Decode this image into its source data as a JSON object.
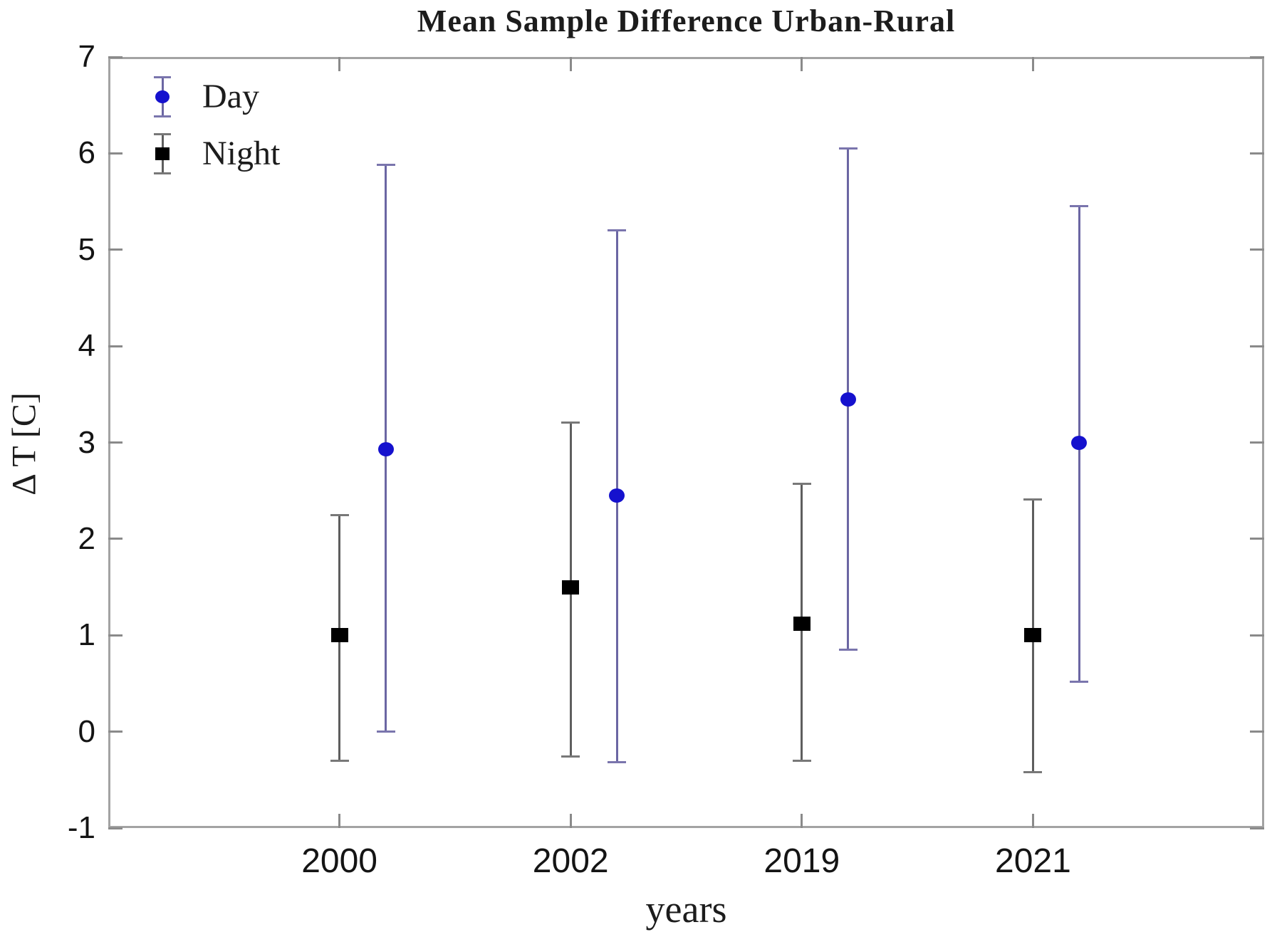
{
  "figure": {
    "title": "Mean Sample Difference Urban-Rural",
    "xlabel": "years",
    "ylabel": "Δ T [C]"
  },
  "chart_data": {
    "type": "scatter",
    "subtype": "errorbar",
    "title": "Mean Sample Difference Urban-Rural",
    "xlabel": "years",
    "ylabel": "Δ T [C]",
    "categories": [
      "2000",
      "2002",
      "2019",
      "2021"
    ],
    "ylim": [
      -1,
      7
    ],
    "yticks": [
      7,
      6,
      5,
      4,
      3,
      2,
      1,
      0,
      -1
    ],
    "ytick_labels": [
      "7",
      "6",
      "5",
      "4",
      "3",
      "2",
      "1",
      "0",
      "-1"
    ],
    "grid": false,
    "legend_position": "top-left",
    "series": [
      {
        "name": "Day",
        "marker": "circle",
        "marker_color": "#1511ce",
        "line_color": "#6b66a3",
        "cap_color": "#7a75ad",
        "values": [
          2.93,
          2.45,
          3.45,
          3.0
        ],
        "err_low": [
          0.0,
          -0.32,
          0.85,
          0.52
        ],
        "err_high": [
          5.88,
          5.2,
          6.05,
          5.45
        ]
      },
      {
        "name": "Night",
        "marker": "square",
        "marker_color": "#000000",
        "line_color": "#5e5e5e",
        "cap_color": "#787878",
        "values": [
          1.0,
          1.5,
          1.12,
          1.0
        ],
        "err_low": [
          -0.3,
          -0.26,
          -0.3,
          -0.42
        ],
        "err_high": [
          2.25,
          3.21,
          2.57,
          2.41
        ]
      }
    ]
  }
}
